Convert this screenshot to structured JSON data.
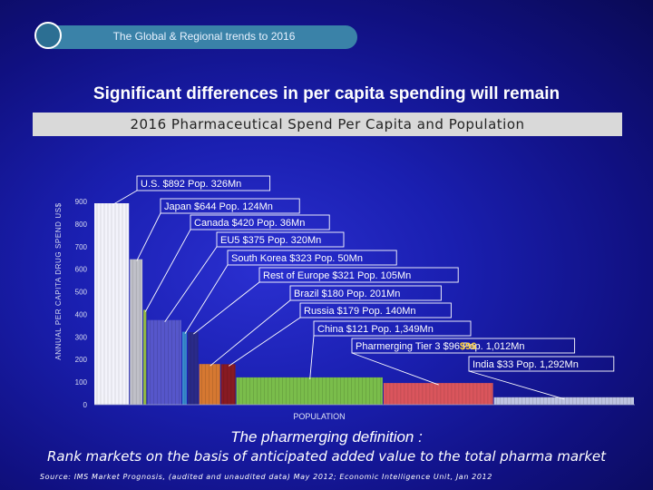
{
  "header": {
    "tagline": "The Global & Regional trends to 2016"
  },
  "title": "Significant differences in per capita spending will remain",
  "banner": "2016 Pharmaceutical Spend Per Capita and Population",
  "footer": {
    "definition": "The pharmerging definition :",
    "subdefinition": "Rank markets on the basis of anticipated added value to the total pharma market",
    "source": "Source: IMS Market Prognosis, (audited and unaudited data) May 2012; Economic Intelligence Unit, Jan 2012"
  },
  "chart_data": {
    "type": "bar",
    "ylabel": "ANNUAL PER CAPITA DRUG SPEND US$",
    "xlabel": "POPULATION",
    "ylim": [
      0,
      900
    ],
    "yticks": [
      0,
      100,
      200,
      300,
      400,
      500,
      600,
      700,
      800,
      900
    ],
    "x_unit": "Population (Mn)",
    "series": [
      {
        "label": "U.S. $892  Pop. 326Mn",
        "value": 892,
        "population": 326,
        "color": "#ffffff"
      },
      {
        "label": "Japan $644  Pop. 124Mn",
        "value": 644,
        "population": 124,
        "color": "#c9c9c9"
      },
      {
        "label": "Canada $420  Pop. 36Mn",
        "value": 420,
        "population": 36,
        "color": "#9cc43c"
      },
      {
        "label": "EU5 $375  Pop. 320Mn",
        "value": 375,
        "population": 320,
        "color": "#5a5acb"
      },
      {
        "label": "South Korea $323  Pop. 50Mn",
        "value": 323,
        "population": 50,
        "color": "#3a8fcf"
      },
      {
        "label": "Rest of Europe  $321  Pop. 105Mn",
        "value": 321,
        "population": 105,
        "color": "#2b2b86"
      },
      {
        "label": "Brazil  $180  Pop. 201Mn",
        "value": 180,
        "population": 201,
        "color": "#e07d2a"
      },
      {
        "label": "Russia  $179  Pop. 140Mn",
        "value": 179,
        "population": 140,
        "color": "#8e1a1a"
      },
      {
        "label": "China  $121  Pop. 1,349Mn",
        "value": 121,
        "population": 1349,
        "color": "#7fc646"
      },
      {
        "label": "Pharmerging Tier 3 $96  Pop. 1,012Mn",
        "value": 96,
        "population": 1012,
        "color": "#e55858"
      },
      {
        "label": "India $33  Pop. 1,292Mn",
        "value": 33,
        "population": 1292,
        "color": "#c8cfe6"
      }
    ],
    "colors": {
      "callout_highlight": "#ffd23c"
    }
  }
}
